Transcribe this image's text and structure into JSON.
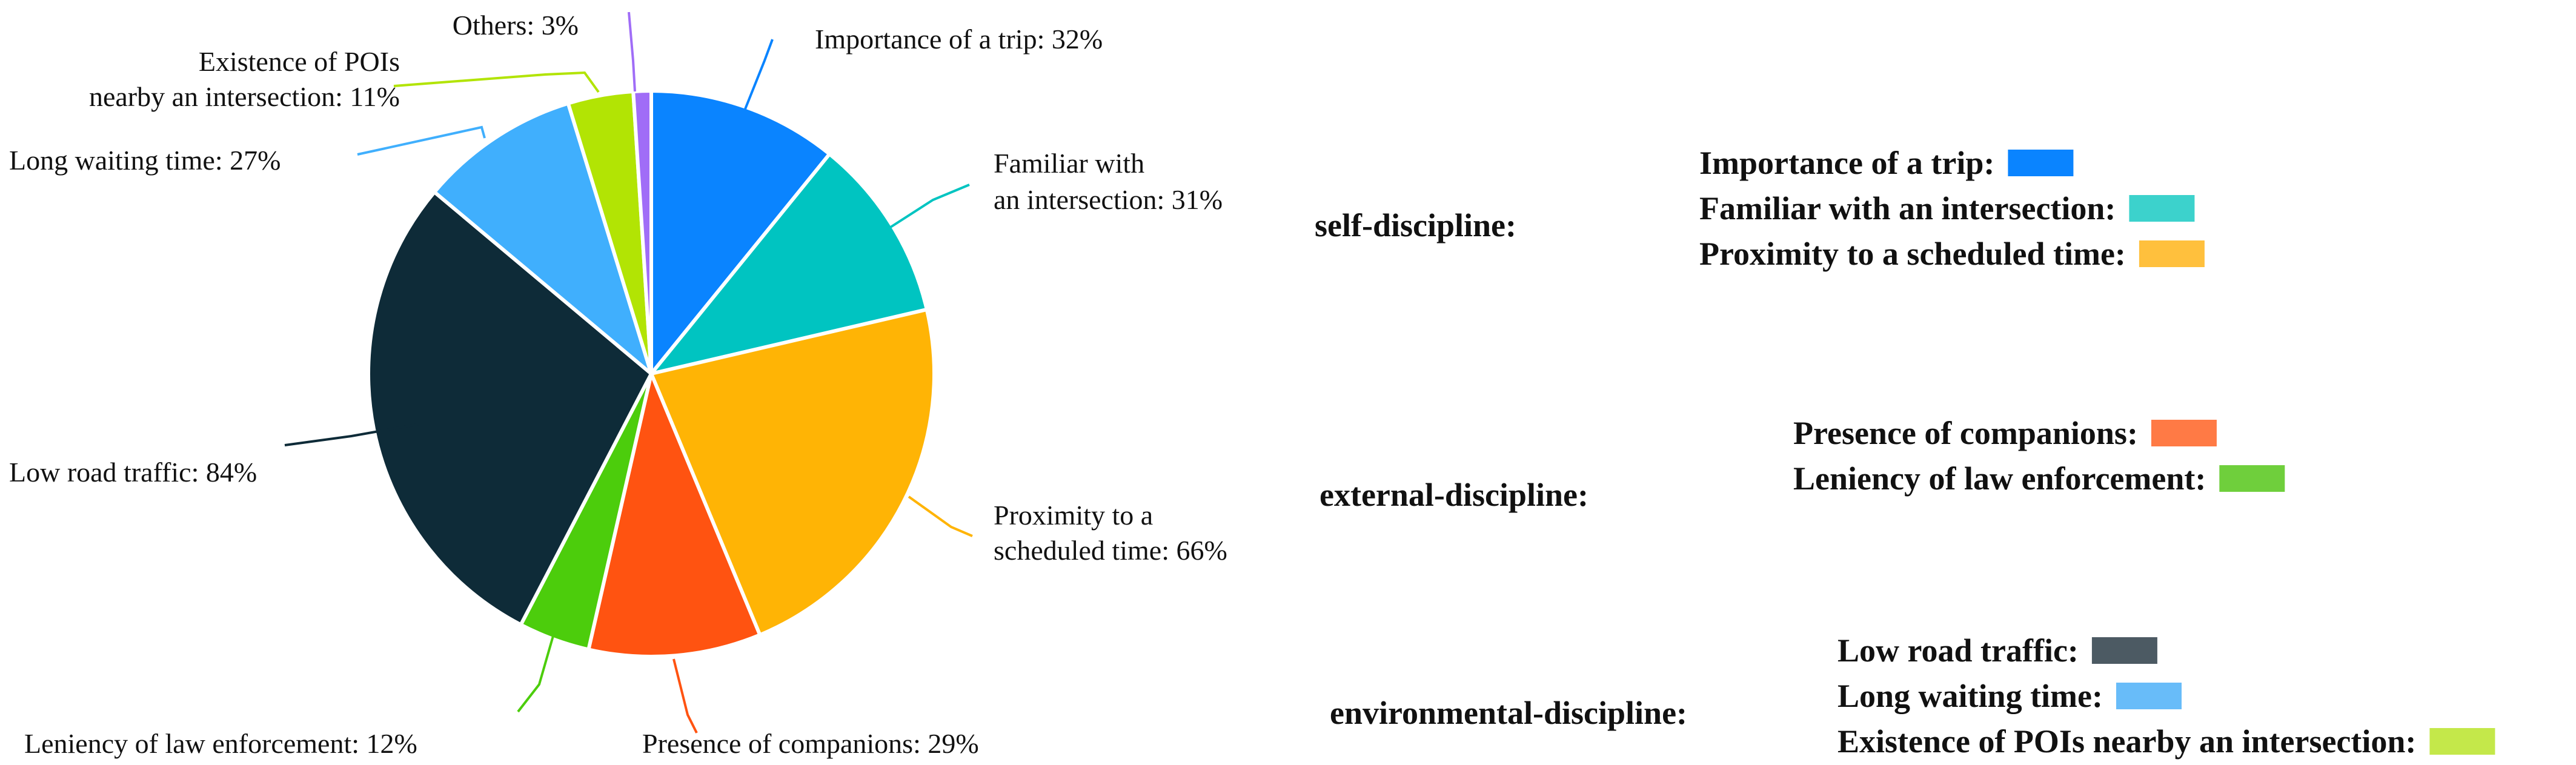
{
  "chart_data": {
    "type": "pie",
    "title": "",
    "slices": [
      {
        "id": "importance",
        "value": 32,
        "color": "#0a84ff",
        "label_lines": [
          "Importance of a trip: 32%"
        ]
      },
      {
        "id": "familiar",
        "value": 31,
        "color": "#00c4c1",
        "label_lines": [
          "Familiar with",
          "an intersection: 31%"
        ]
      },
      {
        "id": "proximity",
        "value": 66,
        "color": "#ffb405",
        "label_lines": [
          "Proximity to a",
          "scheduled time: 66%"
        ]
      },
      {
        "id": "companions",
        "value": 29,
        "color": "#ff5311",
        "label_lines": [
          "Presence of companions: 29%"
        ]
      },
      {
        "id": "leniency",
        "value": 12,
        "color": "#4ccd0c",
        "label_lines": [
          "Leniency of law enforcement: 12%"
        ]
      },
      {
        "id": "low-traffic",
        "value": 84,
        "color": "#0e2b38",
        "label_lines": [
          "Low road traffic: 84%"
        ]
      },
      {
        "id": "long-waiting",
        "value": 27,
        "color": "#40affd",
        "label_lines": [
          "Long waiting time: 27%"
        ]
      },
      {
        "id": "pois",
        "value": 11,
        "color": "#b2e404",
        "label_lines": [
          "Existence of POIs",
          "nearby an intersection: 11%"
        ]
      },
      {
        "id": "others",
        "value": 3,
        "color": "#a06df7",
        "label_lines": [
          "Others: 3%"
        ]
      }
    ]
  },
  "legend": {
    "groups": [
      {
        "title": "self-discipline:",
        "items": [
          {
            "label": "Importance of a trip:",
            "color": "#0a84ff"
          },
          {
            "label": "Familiar with an intersection:",
            "color": "#3cd2cc"
          },
          {
            "label": "Proximity to a scheduled time:",
            "color": "#ffc03d"
          }
        ]
      },
      {
        "title": "external-discipline:",
        "items": [
          {
            "label": "Presence of companions:",
            "color": "#ff7a45"
          },
          {
            "label": "Leniency of law enforcement:",
            "color": "#6fcf3c"
          }
        ]
      },
      {
        "title": "environmental-discipline:",
        "items": [
          {
            "label": "Low road traffic:",
            "color": "#4c5a63"
          },
          {
            "label": "Long waiting time:",
            "color": "#68bcf9"
          },
          {
            "label": "Existence of POIs nearby an intersection:",
            "color": "#c4e84a"
          }
        ]
      }
    ]
  }
}
